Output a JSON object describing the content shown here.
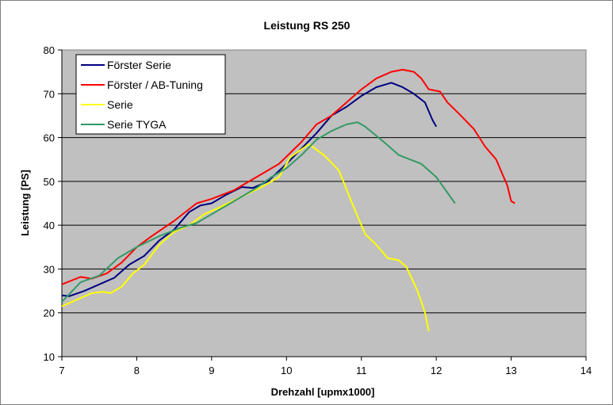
{
  "chart_data": {
    "type": "line",
    "title": "Leistung RS 250",
    "xlabel": "Drehzahl [upmx1000]",
    "ylabel": "Leistung [PS]",
    "xlim": [
      7,
      14
    ],
    "ylim": [
      10,
      80
    ],
    "xticks": [
      7,
      8,
      9,
      10,
      11,
      12,
      13,
      14
    ],
    "yticks": [
      10,
      20,
      30,
      40,
      50,
      60,
      70,
      80
    ],
    "grid": "horizontal",
    "legend_position": "top-left",
    "series": [
      {
        "name": "Förster Serie",
        "color": "#000080",
        "points": [
          [
            7.0,
            24
          ],
          [
            7.1,
            23.8
          ],
          [
            7.3,
            25
          ],
          [
            7.5,
            26.5
          ],
          [
            7.7,
            28
          ],
          [
            7.9,
            31
          ],
          [
            8.1,
            33
          ],
          [
            8.3,
            36.5
          ],
          [
            8.5,
            39
          ],
          [
            8.7,
            43
          ],
          [
            8.85,
            44.5
          ],
          [
            9.0,
            45
          ],
          [
            9.2,
            47
          ],
          [
            9.4,
            48.7
          ],
          [
            9.55,
            48.5
          ],
          [
            9.75,
            50
          ],
          [
            10.0,
            54
          ],
          [
            10.2,
            57.5
          ],
          [
            10.4,
            61
          ],
          [
            10.6,
            65
          ],
          [
            10.8,
            67
          ],
          [
            11.0,
            69.5
          ],
          [
            11.2,
            71.5
          ],
          [
            11.4,
            72.5
          ],
          [
            11.55,
            71.5
          ],
          [
            11.7,
            70
          ],
          [
            11.85,
            68
          ],
          [
            11.95,
            64
          ],
          [
            12.0,
            62.5
          ]
        ]
      },
      {
        "name": "Förster / AB-Tuning",
        "color": "#ff0000",
        "points": [
          [
            7.0,
            26.5
          ],
          [
            7.25,
            28.2
          ],
          [
            7.4,
            27.8
          ],
          [
            7.6,
            29
          ],
          [
            7.8,
            31.5
          ],
          [
            8.0,
            35
          ],
          [
            8.2,
            37.5
          ],
          [
            8.5,
            41
          ],
          [
            8.8,
            45
          ],
          [
            9.0,
            46
          ],
          [
            9.3,
            48
          ],
          [
            9.6,
            51
          ],
          [
            9.9,
            54
          ],
          [
            10.2,
            59
          ],
          [
            10.4,
            63
          ],
          [
            10.6,
            65
          ],
          [
            10.8,
            68
          ],
          [
            11.0,
            71
          ],
          [
            11.2,
            73.5
          ],
          [
            11.4,
            75
          ],
          [
            11.55,
            75.5
          ],
          [
            11.7,
            75
          ],
          [
            11.8,
            73.5
          ],
          [
            11.9,
            71
          ],
          [
            12.05,
            70.5
          ],
          [
            12.15,
            68
          ],
          [
            12.3,
            65.5
          ],
          [
            12.5,
            62
          ],
          [
            12.65,
            58
          ],
          [
            12.8,
            55
          ],
          [
            12.9,
            51
          ],
          [
            12.95,
            49
          ],
          [
            13.0,
            45.5
          ],
          [
            13.05,
            45
          ]
        ]
      },
      {
        "name": "Serie",
        "color": "#ffff00",
        "points": [
          [
            7.0,
            21.5
          ],
          [
            7.2,
            23
          ],
          [
            7.4,
            24.5
          ],
          [
            7.55,
            24.8
          ],
          [
            7.65,
            24.5
          ],
          [
            7.8,
            26
          ],
          [
            7.95,
            29
          ],
          [
            8.1,
            31
          ],
          [
            8.3,
            35.5
          ],
          [
            8.5,
            38.5
          ],
          [
            8.7,
            40
          ],
          [
            8.9,
            42.5
          ],
          [
            9.1,
            44
          ],
          [
            9.4,
            46.5
          ],
          [
            9.7,
            49
          ],
          [
            9.9,
            51
          ],
          [
            10.05,
            55.5
          ],
          [
            10.3,
            58.5
          ],
          [
            10.5,
            56
          ],
          [
            10.7,
            52.5
          ],
          [
            10.9,
            44
          ],
          [
            11.05,
            38
          ],
          [
            11.2,
            35.5
          ],
          [
            11.35,
            32.5
          ],
          [
            11.5,
            32
          ],
          [
            11.6,
            30.5
          ],
          [
            11.75,
            25
          ],
          [
            11.85,
            20
          ],
          [
            11.9,
            15.8
          ]
        ]
      },
      {
        "name": "Serie TYGA",
        "color": "#339966",
        "points": [
          [
            7.0,
            22.5
          ],
          [
            7.25,
            27
          ],
          [
            7.5,
            28.5
          ],
          [
            7.75,
            32.5
          ],
          [
            8.0,
            35
          ],
          [
            8.3,
            37.5
          ],
          [
            8.6,
            39.5
          ],
          [
            8.8,
            40.5
          ],
          [
            9.0,
            42.5
          ],
          [
            9.3,
            45.5
          ],
          [
            9.6,
            48.5
          ],
          [
            9.8,
            51
          ],
          [
            10.0,
            53
          ],
          [
            10.2,
            56
          ],
          [
            10.4,
            59.5
          ],
          [
            10.6,
            61.5
          ],
          [
            10.8,
            63
          ],
          [
            10.95,
            63.5
          ],
          [
            11.05,
            62.5
          ],
          [
            11.3,
            59
          ],
          [
            11.5,
            56
          ],
          [
            11.8,
            54
          ],
          [
            12.0,
            51
          ],
          [
            12.25,
            45
          ]
        ]
      }
    ]
  }
}
